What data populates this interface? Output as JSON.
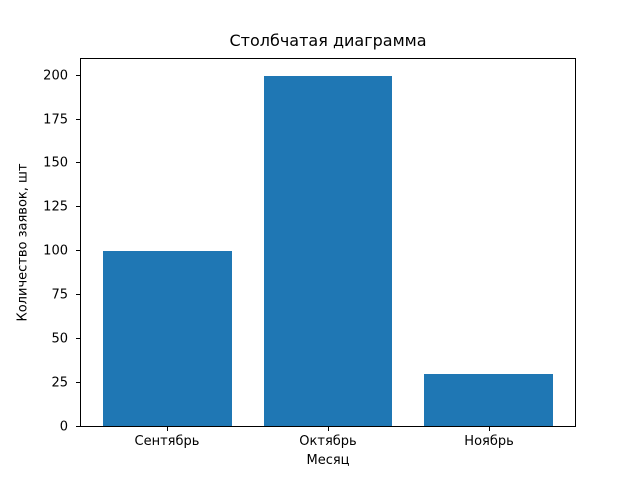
{
  "chart_data": {
    "type": "bar",
    "title": "Столбчатая диаграмма",
    "xlabel": "Месяц",
    "ylabel": "Количество заявок, шт",
    "categories": [
      "Сентябрь",
      "Октябрь",
      "Ноябрь"
    ],
    "values": [
      100,
      200,
      30
    ],
    "yticks": [
      0,
      25,
      50,
      75,
      100,
      125,
      150,
      175,
      200
    ],
    "ylim": [
      0,
      210
    ],
    "bar_color": "#1f77b4",
    "background_color": "#ffffff",
    "grid": false,
    "legend_position": "none"
  }
}
